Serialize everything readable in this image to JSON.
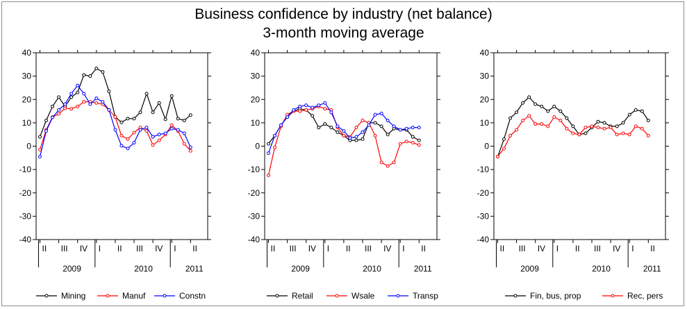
{
  "figure": {
    "title_line1": "Business confidence by industry (net balance)",
    "title_line2": "3-month moving average"
  },
  "chart_data": [
    {
      "type": "line",
      "title": "",
      "xlabel": "",
      "ylabel": "",
      "ylim": [
        -40,
        40
      ],
      "yticks": [
        40,
        30,
        20,
        10,
        0,
        -10,
        -20,
        -30,
        -40
      ],
      "quarter_labels": [
        "II",
        "III",
        "IV",
        "I",
        "II",
        "III",
        "IV",
        "I",
        "II"
      ],
      "year_labels": [
        "2009",
        "2010",
        "2011"
      ],
      "legend_position": "bottom",
      "series": [
        {
          "name": "Mining",
          "color": "#000000",
          "values": [
            4,
            11,
            17,
            21,
            17,
            21,
            23,
            30.5,
            30,
            33.3,
            31.8,
            23.5,
            12.5,
            10.2,
            11.8,
            11.8,
            14.5,
            22.5,
            14.5,
            18.5,
            11.5,
            21.5,
            11.8,
            11,
            13.3
          ]
        },
        {
          "name": "Manuf",
          "color": "#ff0000",
          "values": [
            -1.5,
            7,
            12.5,
            13.8,
            16.2,
            16,
            17,
            19,
            19,
            18.5,
            18,
            15.5,
            12.5,
            4.5,
            3,
            5.8,
            8,
            6.5,
            0.5,
            2.5,
            5,
            9,
            6.5,
            1,
            -2
          ]
        },
        {
          "name": "Constn",
          "color": "#0000ff",
          "values": [
            -4.5,
            6.5,
            12.3,
            15.5,
            18,
            22.5,
            26,
            22.5,
            18,
            20.5,
            19,
            15.5,
            7,
            0.2,
            -1,
            1.5,
            7,
            8,
            4,
            5,
            5.5,
            7.5,
            7,
            5.5,
            -0.5
          ]
        }
      ]
    },
    {
      "type": "line",
      "title": "",
      "xlabel": "",
      "ylabel": "",
      "ylim": [
        -40,
        40
      ],
      "yticks": [
        40,
        30,
        20,
        10,
        0,
        -10,
        -20,
        -30,
        -40
      ],
      "quarter_labels": [
        "II",
        "III",
        "IV",
        "I",
        "II",
        "III",
        "IV",
        "I",
        "II"
      ],
      "year_labels": [
        "2009",
        "2010",
        "2011"
      ],
      "legend_position": "bottom",
      "series": [
        {
          "name": "Retail",
          "color": "#000000",
          "values": [
            1,
            4.5,
            9,
            12.5,
            15,
            16,
            15.5,
            13,
            8,
            9.5,
            8,
            6,
            4.5,
            2.5,
            2.5,
            3,
            10,
            10,
            8.5,
            5,
            7.5,
            7,
            7,
            4,
            2.5
          ]
        },
        {
          "name": "Wsale",
          "color": "#ff0000",
          "values": [
            -12.5,
            -0.5,
            8.5,
            13.5,
            15,
            15,
            15.5,
            16,
            17,
            16,
            15.5,
            8,
            4.5,
            4,
            8,
            11,
            10,
            4.5,
            -7,
            -8.5,
            -7,
            1,
            2,
            1.5,
            0.5
          ]
        },
        {
          "name": "Transp",
          "color": "#0000ff",
          "values": [
            -3,
            4.5,
            9,
            12.5,
            15.5,
            17,
            17.5,
            16.5,
            17.5,
            18.5,
            14.5,
            8.5,
            6.5,
            3.5,
            4,
            6,
            9,
            13.5,
            14,
            11,
            8.5,
            7,
            7.5,
            8,
            8
          ]
        }
      ]
    },
    {
      "type": "line",
      "title": "",
      "xlabel": "",
      "ylabel": "",
      "ylim": [
        -40,
        40
      ],
      "yticks": [
        40,
        30,
        20,
        10,
        0,
        -10,
        -20,
        -30,
        -40
      ],
      "quarter_labels": [
        "II",
        "III",
        "IV",
        "I",
        "II",
        "III",
        "IV",
        "I",
        "II"
      ],
      "year_labels": [
        "2009",
        "2010",
        "2011"
      ],
      "legend_position": "bottom",
      "series": [
        {
          "name": "Fin, bus, prop",
          "color": "#000000",
          "values": [
            -4.5,
            3,
            12,
            14.5,
            18.5,
            21,
            18,
            17,
            15,
            17,
            15,
            12,
            8.5,
            5,
            5.5,
            8,
            10.5,
            10,
            8.5,
            8.5,
            10,
            13.5,
            15.5,
            15,
            11
          ]
        },
        {
          "name": "Rec, pers",
          "color": "#ff0000",
          "values": [
            -4.5,
            -1,
            4.5,
            7,
            11,
            13,
            9.5,
            9.5,
            8.5,
            12.5,
            11,
            7.5,
            5.5,
            5,
            8,
            8.5,
            8,
            7.5,
            8,
            5,
            5.5,
            5,
            8.5,
            7.5,
            4.5
          ]
        }
      ]
    }
  ]
}
